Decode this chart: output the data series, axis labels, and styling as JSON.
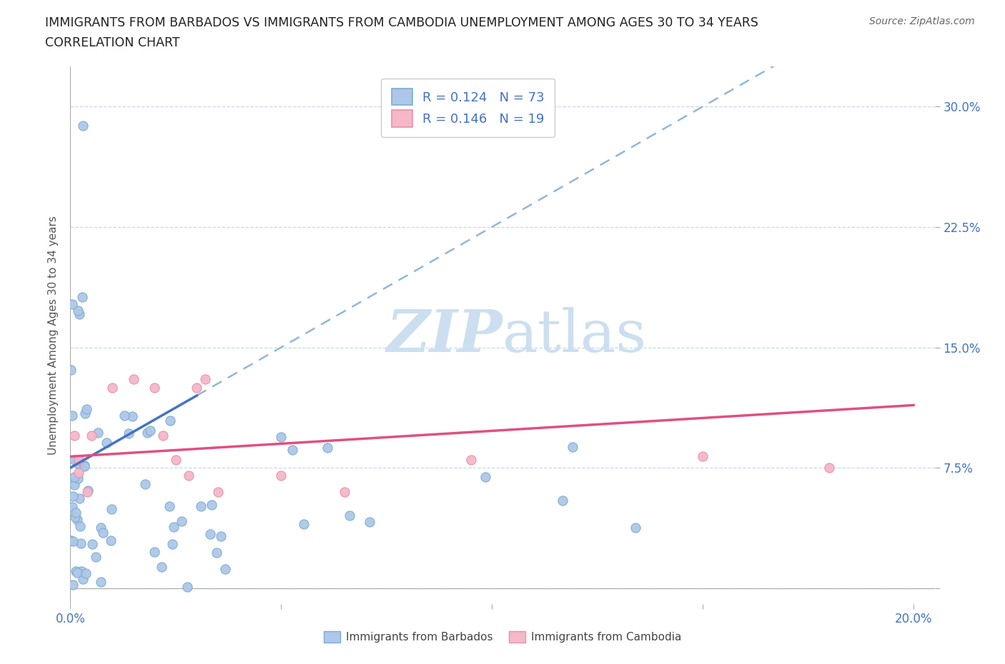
{
  "title_line1": "IMMIGRANTS FROM BARBADOS VS IMMIGRANTS FROM CAMBODIA UNEMPLOYMENT AMONG AGES 30 TO 34 YEARS",
  "title_line2": "CORRELATION CHART",
  "source_text": "Source: ZipAtlas.com",
  "ylabel": "Unemployment Among Ages 30 to 34 years",
  "xlim": [
    0.0,
    0.205
  ],
  "ylim": [
    -0.01,
    0.325
  ],
  "yticks": [
    0.0,
    0.075,
    0.15,
    0.225,
    0.3
  ],
  "ytick_labels": [
    "",
    "7.5%",
    "15.0%",
    "22.5%",
    "30.0%"
  ],
  "xticks": [
    0.0,
    0.05,
    0.1,
    0.15,
    0.2
  ],
  "xtick_labels": [
    "0.0%",
    "",
    "",
    "",
    "20.0%"
  ],
  "barbados_R": 0.124,
  "barbados_N": 73,
  "cambodia_R": 0.146,
  "cambodia_N": 19,
  "barbados_color": "#aec6e8",
  "cambodia_color": "#f4b8c8",
  "barbados_edge": "#7aaed0",
  "cambodia_edge": "#e890a8",
  "trend_barbados_color": "#4472c4",
  "trend_cambodia_color": "#e05080",
  "trend_dashed_color": "#90b8d8",
  "watermark_color": "#ccdff0",
  "legend_barbados": "Immigrants from Barbados",
  "legend_cambodia": "Immigrants from Cambodia",
  "tick_color": "#4472c4",
  "grid_color": "#c8d8ea",
  "title_color": "#222222",
  "source_color": "#666666"
}
